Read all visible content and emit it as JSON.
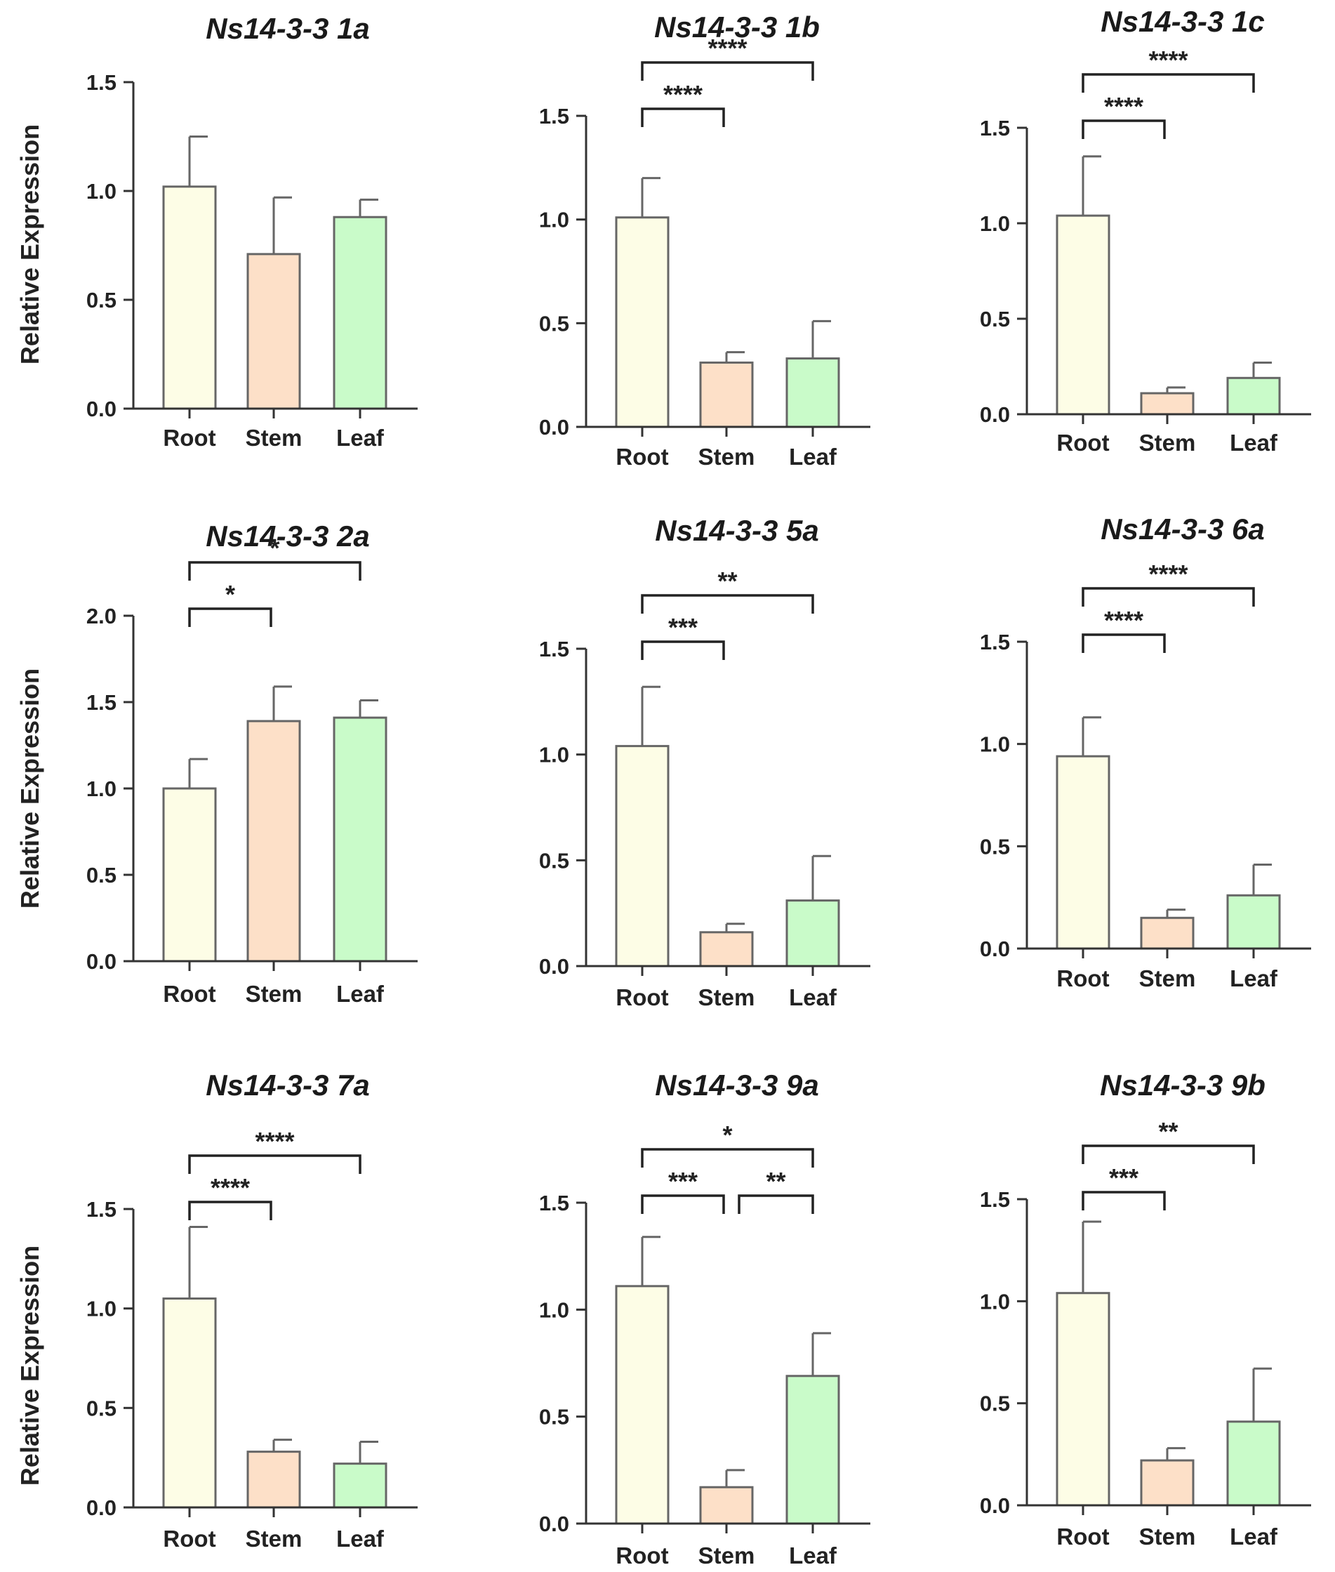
{
  "chart_data": [
    {
      "type": "bar",
      "title": "Ns14-3-3 1a",
      "ylabel": "Relative Expression",
      "categories": [
        "Root",
        "Stem",
        "Leaf"
      ],
      "values": [
        1.02,
        0.71,
        0.88
      ],
      "errors": [
        0.23,
        0.26,
        0.08
      ],
      "ylim": [
        0,
        1.5
      ],
      "yticks": [
        "0.0",
        "0.5",
        "1.0",
        "1.5"
      ],
      "colors": [
        "#fdfde6",
        "#fde0c8",
        "#c9fbc9"
      ],
      "significance": []
    },
    {
      "type": "bar",
      "title": "Ns14-3-3 1b",
      "ylabel": "",
      "categories": [
        "Root",
        "Stem",
        "Leaf"
      ],
      "values": [
        1.01,
        0.31,
        0.33
      ],
      "errors": [
        0.19,
        0.05,
        0.18
      ],
      "ylim": [
        0,
        1.5
      ],
      "yticks": [
        "0.0",
        "0.5",
        "1.0",
        "1.5"
      ],
      "colors": [
        "#fdfde6",
        "#fde0c8",
        "#c9fbc9"
      ],
      "significance": [
        {
          "from": 0,
          "to": 1,
          "label": "****"
        },
        {
          "from": 0,
          "to": 2,
          "label": "****"
        }
      ]
    },
    {
      "type": "bar",
      "title": "Ns14-3-3 1c",
      "ylabel": "",
      "categories": [
        "Root",
        "Stem",
        "Leaf"
      ],
      "values": [
        1.04,
        0.11,
        0.19
      ],
      "errors": [
        0.31,
        0.03,
        0.08
      ],
      "ylim": [
        0,
        1.5
      ],
      "yticks": [
        "0.0",
        "0.5",
        "1.0",
        "1.5"
      ],
      "colors": [
        "#fdfde6",
        "#fde0c8",
        "#c9fbc9"
      ],
      "significance": [
        {
          "from": 0,
          "to": 1,
          "label": "****"
        },
        {
          "from": 0,
          "to": 2,
          "label": "****"
        }
      ]
    },
    {
      "type": "bar",
      "title": "Ns14-3-3 2a",
      "ylabel": "Relative Expression",
      "categories": [
        "Root",
        "Stem",
        "Leaf"
      ],
      "values": [
        1.0,
        1.39,
        1.41
      ],
      "errors": [
        0.17,
        0.2,
        0.1
      ],
      "ylim": [
        0,
        2.0
      ],
      "yticks": [
        "0.0",
        "0.5",
        "1.0",
        "1.5",
        "2.0"
      ],
      "colors": [
        "#fdfde6",
        "#fde0c8",
        "#c9fbc9"
      ],
      "significance": [
        {
          "from": 0,
          "to": 1,
          "label": "*"
        },
        {
          "from": 0,
          "to": 2,
          "label": "*"
        }
      ]
    },
    {
      "type": "bar",
      "title": "Ns14-3-3 5a",
      "ylabel": "",
      "categories": [
        "Root",
        "Stem",
        "Leaf"
      ],
      "values": [
        1.04,
        0.16,
        0.31
      ],
      "errors": [
        0.28,
        0.04,
        0.21
      ],
      "ylim": [
        0,
        1.5
      ],
      "yticks": [
        "0.0",
        "0.5",
        "1.0",
        "1.5"
      ],
      "colors": [
        "#fdfde6",
        "#fde0c8",
        "#c9fbc9"
      ],
      "significance": [
        {
          "from": 0,
          "to": 1,
          "label": "***"
        },
        {
          "from": 0,
          "to": 2,
          "label": "**"
        }
      ]
    },
    {
      "type": "bar",
      "title": "Ns14-3-3 6a",
      "ylabel": "",
      "categories": [
        "Root",
        "Stem",
        "Leaf"
      ],
      "values": [
        0.94,
        0.15,
        0.26
      ],
      "errors": [
        0.19,
        0.04,
        0.15
      ],
      "ylim": [
        0,
        1.5
      ],
      "yticks": [
        "0.0",
        "0.5",
        "1.0",
        "1.5"
      ],
      "colors": [
        "#fdfde6",
        "#fde0c8",
        "#c9fbc9"
      ],
      "significance": [
        {
          "from": 0,
          "to": 1,
          "label": "****"
        },
        {
          "from": 0,
          "to": 2,
          "label": "****"
        }
      ]
    },
    {
      "type": "bar",
      "title": "Ns14-3-3 7a",
      "ylabel": "Relative Expression",
      "categories": [
        "Root",
        "Stem",
        "Leaf"
      ],
      "values": [
        1.05,
        0.28,
        0.22
      ],
      "errors": [
        0.36,
        0.06,
        0.11
      ],
      "ylim": [
        0,
        1.5
      ],
      "yticks": [
        "0.0",
        "0.5",
        "1.0",
        "1.5"
      ],
      "colors": [
        "#fdfde6",
        "#fde0c8",
        "#c9fbc9"
      ],
      "significance": [
        {
          "from": 0,
          "to": 1,
          "label": "****"
        },
        {
          "from": 0,
          "to": 2,
          "label": "****"
        }
      ]
    },
    {
      "type": "bar",
      "title": "Ns14-3-3 9a",
      "ylabel": "",
      "categories": [
        "Root",
        "Stem",
        "Leaf"
      ],
      "values": [
        1.11,
        0.17,
        0.69
      ],
      "errors": [
        0.23,
        0.08,
        0.2
      ],
      "ylim": [
        0,
        1.5
      ],
      "yticks": [
        "0.0",
        "0.5",
        "1.0",
        "1.5"
      ],
      "colors": [
        "#fdfde6",
        "#fde0c8",
        "#c9fbc9"
      ],
      "significance": [
        {
          "from": 0,
          "to": 1,
          "label": "***"
        },
        {
          "from": 1,
          "to": 2,
          "label": "**"
        },
        {
          "from": 0,
          "to": 2,
          "label": "*"
        }
      ]
    },
    {
      "type": "bar",
      "title": "Ns14-3-3 9b",
      "ylabel": "",
      "categories": [
        "Root",
        "Stem",
        "Leaf"
      ],
      "values": [
        1.04,
        0.22,
        0.41
      ],
      "errors": [
        0.35,
        0.06,
        0.26
      ],
      "ylim": [
        0,
        1.5
      ],
      "yticks": [
        "0.0",
        "0.5",
        "1.0",
        "1.5"
      ],
      "colors": [
        "#fdfde6",
        "#fde0c8",
        "#c9fbc9"
      ],
      "significance": [
        {
          "from": 0,
          "to": 1,
          "label": "***"
        },
        {
          "from": 0,
          "to": 2,
          "label": "**"
        }
      ]
    }
  ]
}
